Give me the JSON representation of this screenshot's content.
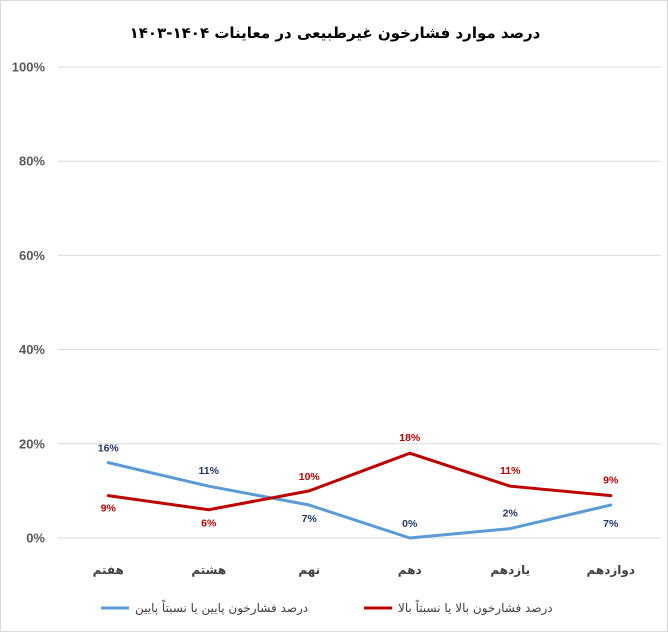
{
  "chart_data": {
    "type": "line",
    "title": "درصد موارد فشارخون غیرطبیعی در معاینات ۱۴۰۴-۱۴۰۳",
    "categories": [
      "هفتم",
      "هشتم",
      "نهم",
      "دهم",
      "یازدهم",
      "دوازدهم"
    ],
    "series": [
      {
        "name": "درصد فشارخون پایین یا نسبتاً پایین",
        "values": [
          16,
          11,
          7,
          0,
          2,
          7
        ],
        "labels": [
          "16%",
          "11%",
          "7%",
          "0%",
          "2%",
          "7%"
        ],
        "color": "#5b9bd5",
        "label_color": "#1f3864"
      },
      {
        "name": "درصد فشارخون بالا یا نسبتاً بالا",
        "values": [
          9,
          6,
          10,
          18,
          11,
          9
        ],
        "labels": [
          "9%",
          "6%",
          "10%",
          "18%",
          "11%",
          "9%"
        ],
        "color": "#c00000",
        "label_color": "#c00000"
      }
    ],
    "ylim": [
      0,
      100
    ],
    "yticks": [
      "0%",
      "20%",
      "40%",
      "60%",
      "80%",
      "100%"
    ],
    "ytick_values": [
      0,
      20,
      40,
      60,
      80,
      100
    ],
    "grid": true,
    "legend_position": "bottom"
  }
}
